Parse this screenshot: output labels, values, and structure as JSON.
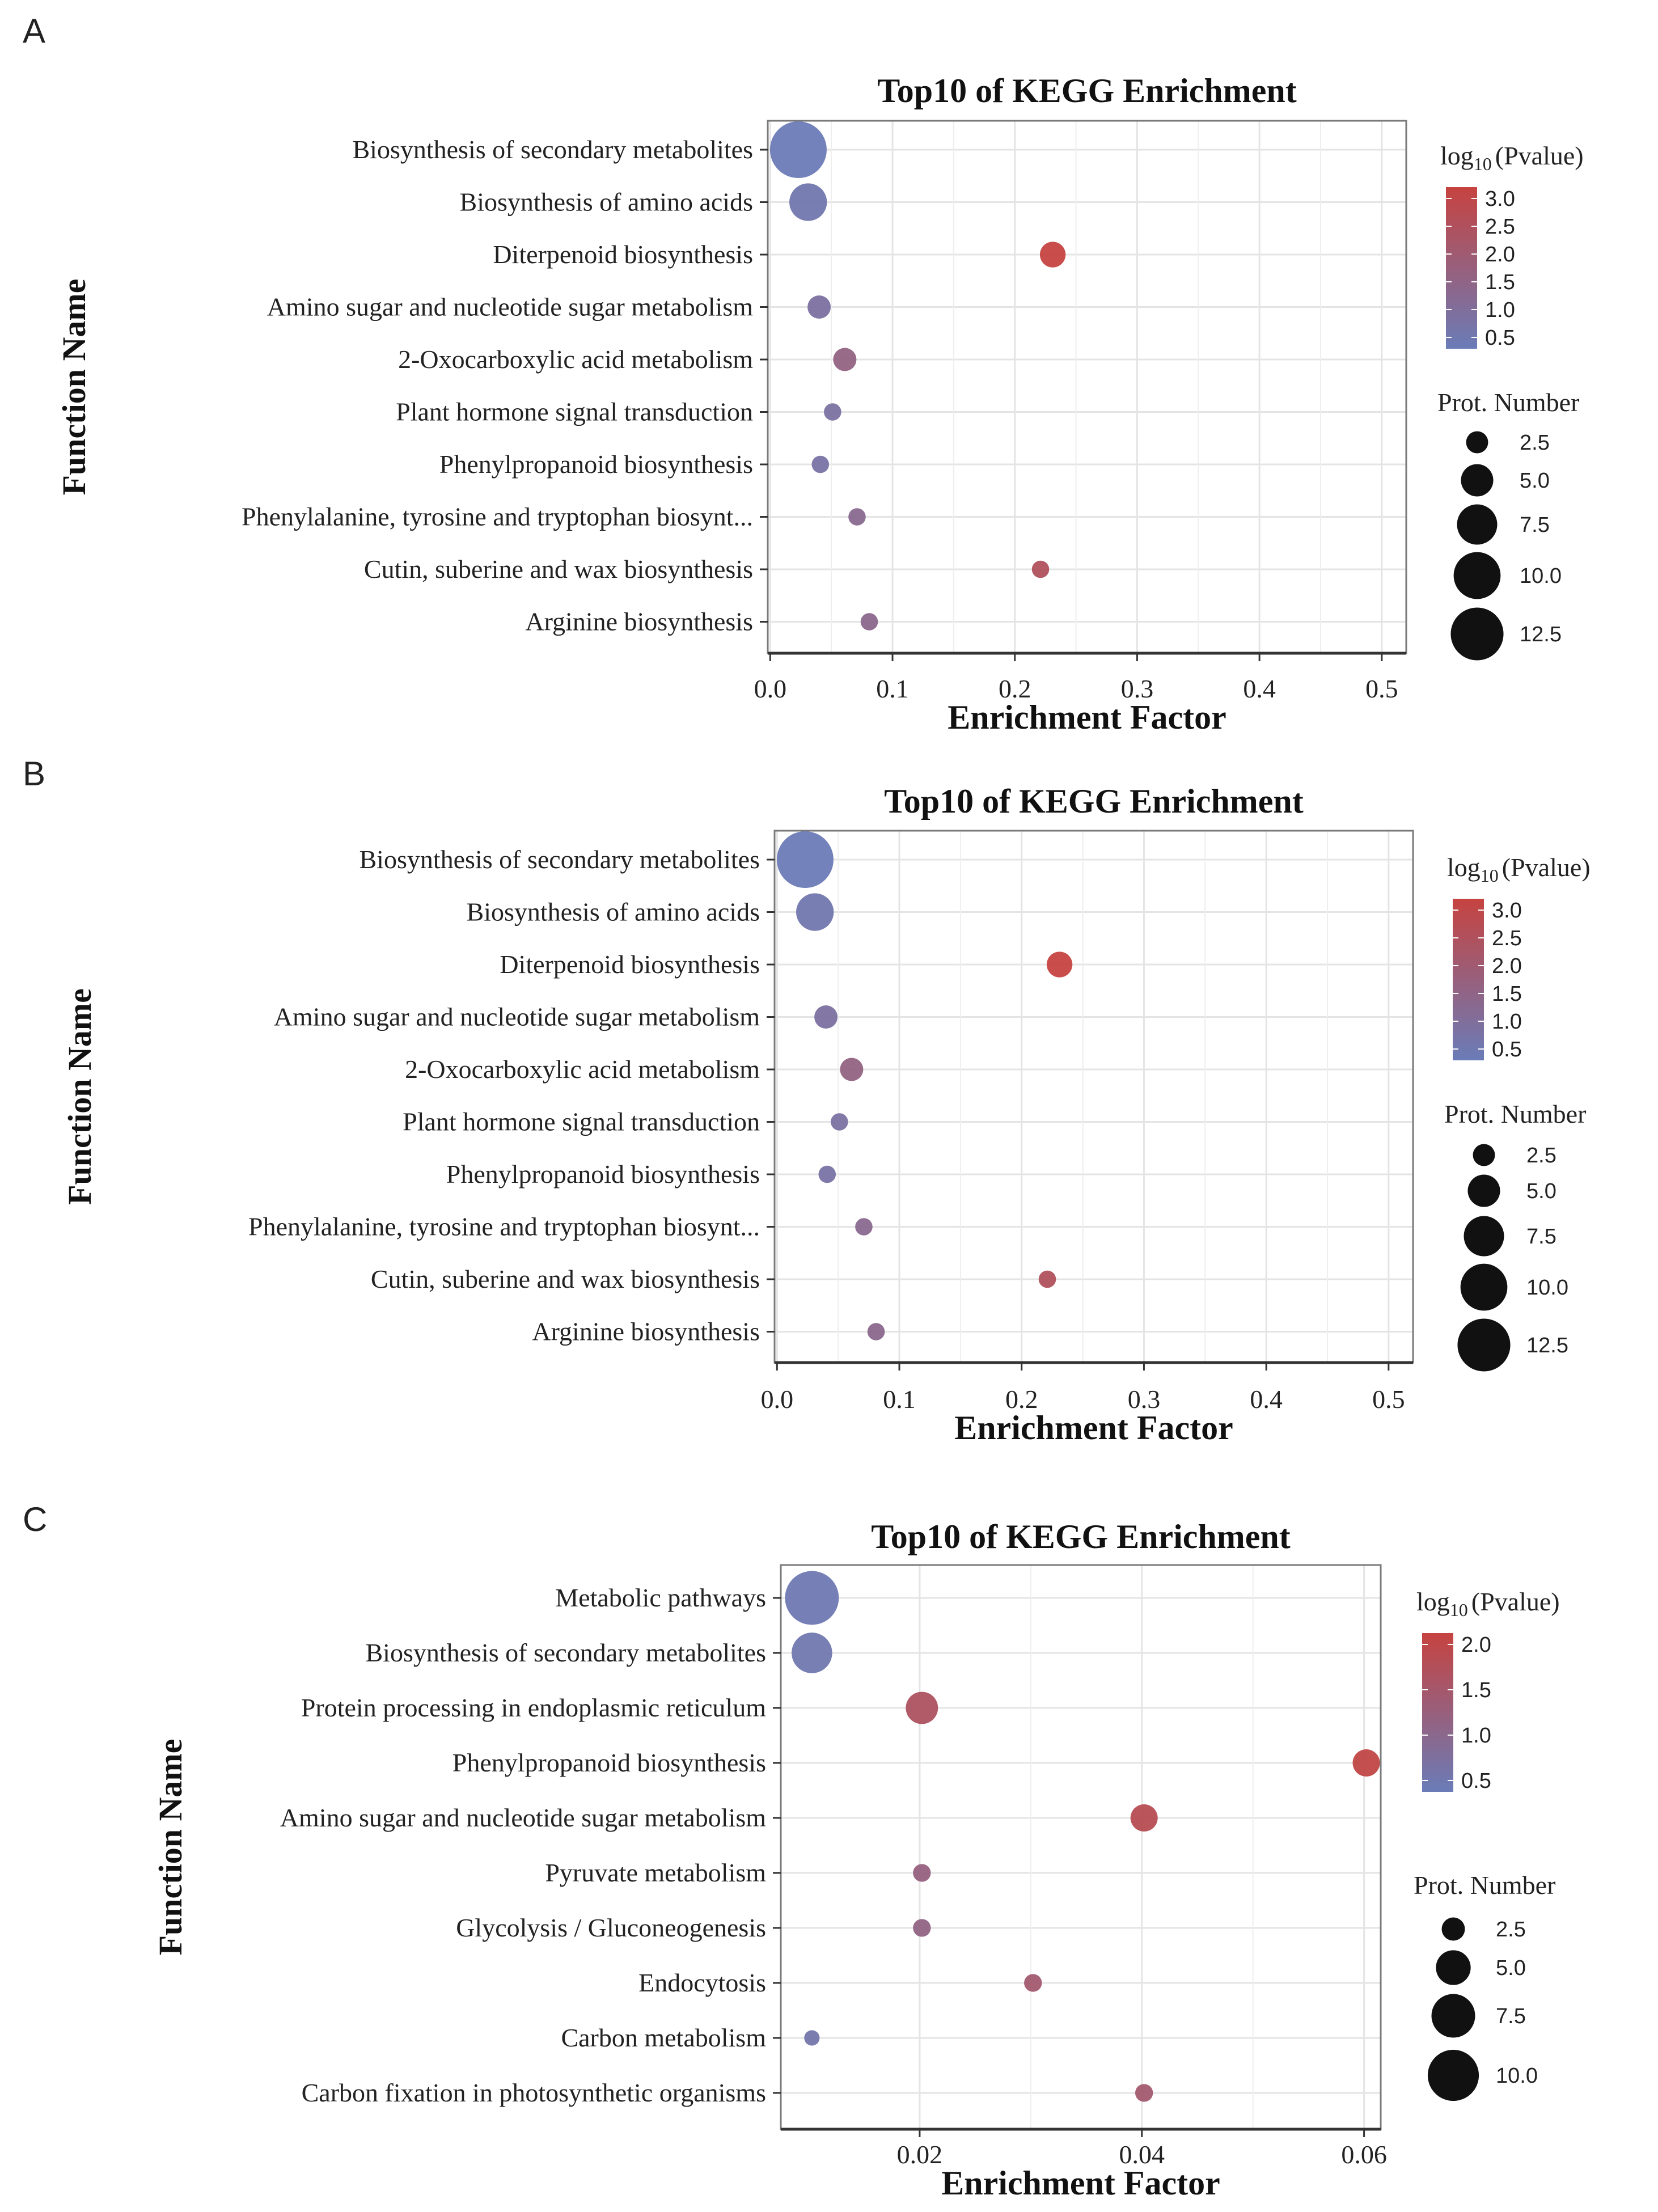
{
  "colors": {
    "low": "#6a7cb8",
    "high": "#c64340",
    "grid": "#e4e4e4",
    "frame": "#7a7a7a",
    "axis": "#333333"
  },
  "legend": {
    "color_title_prefix": "log",
    "color_title_sub": "10",
    "color_title_suffix": "(Pvalue)",
    "size_title": "Prot. Number"
  },
  "chart_data": [
    {
      "panel": "A",
      "type": "scatter",
      "title": "Top10 of KEGG Enrichment",
      "xlabel": "Enrichment Factor",
      "ylabel": "Function Name",
      "xlim": [
        -0.002,
        0.52
      ],
      "xticks": [
        {
          "value": 0.0,
          "label": "0.0"
        },
        {
          "value": 0.1,
          "label": "0.1"
        },
        {
          "value": 0.2,
          "label": "0.2"
        },
        {
          "value": 0.3,
          "label": "0.3"
        },
        {
          "value": 0.4,
          "label": "0.4"
        },
        {
          "value": 0.5,
          "label": "0.5"
        }
      ],
      "grid": true,
      "color_range": [
        0.5,
        3.0
      ],
      "color_ticks": [
        "3.0",
        "2.5",
        "2.0",
        "1.5",
        "1.0",
        "0.5"
      ],
      "size_range": [
        1,
        14
      ],
      "size_ticks": [
        {
          "value": 2.5,
          "label": "2.5"
        },
        {
          "value": 5.0,
          "label": "5.0"
        },
        {
          "value": 7.5,
          "label": "7.5"
        },
        {
          "value": 10.0,
          "label": "10.0"
        },
        {
          "value": 12.5,
          "label": "12.5"
        }
      ],
      "points": [
        {
          "name": "Biosynthesis of secondary metabolites",
          "x": 0.023,
          "size": 13,
          "log10p": 0.55
        },
        {
          "name": "Biosynthesis of amino acids",
          "x": 0.031,
          "size": 6,
          "log10p": 0.7
        },
        {
          "name": "Diterpenoid biosynthesis",
          "x": 0.231,
          "size": 3,
          "log10p": 3.0
        },
        {
          "name": "Amino sugar and nucleotide sugar metabolism",
          "x": 0.04,
          "size": 2.5,
          "log10p": 1.0
        },
        {
          "name": "2-Oxocarboxylic acid metabolism",
          "x": 0.061,
          "size": 2.5,
          "log10p": 1.6
        },
        {
          "name": "Plant hormone signal transduction",
          "x": 0.051,
          "size": 1.5,
          "log10p": 0.95
        },
        {
          "name": "Phenylpropanoid biosynthesis",
          "x": 0.041,
          "size": 1.5,
          "log10p": 0.9
        },
        {
          "name": "Phenylalanine, tyrosine and tryptophan biosynt...",
          "x": 0.071,
          "size": 1.5,
          "log10p": 1.35
        },
        {
          "name": "Cutin, suberine and wax biosynthesis",
          "x": 0.221,
          "size": 1.5,
          "log10p": 2.4
        },
        {
          "name": "Arginine biosynthesis",
          "x": 0.081,
          "size": 1.5,
          "log10p": 1.4
        }
      ]
    },
    {
      "panel": "B",
      "type": "scatter",
      "title": "Top10 of KEGG Enrichment",
      "xlabel": "Enrichment Factor",
      "ylabel": "Function Name",
      "xlim": [
        -0.002,
        0.52
      ],
      "xticks": [
        {
          "value": 0.0,
          "label": "0.0"
        },
        {
          "value": 0.1,
          "label": "0.1"
        },
        {
          "value": 0.2,
          "label": "0.2"
        },
        {
          "value": 0.3,
          "label": "0.3"
        },
        {
          "value": 0.4,
          "label": "0.4"
        },
        {
          "value": 0.5,
          "label": "0.5"
        }
      ],
      "grid": true,
      "color_range": [
        0.5,
        3.0
      ],
      "color_ticks": [
        "3.0",
        "2.5",
        "2.0",
        "1.5",
        "1.0",
        "0.5"
      ],
      "size_range": [
        1,
        14
      ],
      "size_ticks": [
        {
          "value": 2.5,
          "label": "2.5"
        },
        {
          "value": 5.0,
          "label": "5.0"
        },
        {
          "value": 7.5,
          "label": "7.5"
        },
        {
          "value": 10.0,
          "label": "10.0"
        },
        {
          "value": 12.5,
          "label": "12.5"
        }
      ],
      "points": [
        {
          "name": "Biosynthesis of secondary metabolites",
          "x": 0.023,
          "size": 13,
          "log10p": 0.55
        },
        {
          "name": "Biosynthesis of amino acids",
          "x": 0.031,
          "size": 6,
          "log10p": 0.7
        },
        {
          "name": "Diterpenoid biosynthesis",
          "x": 0.231,
          "size": 3,
          "log10p": 3.0
        },
        {
          "name": "Amino sugar and nucleotide sugar metabolism",
          "x": 0.04,
          "size": 2.5,
          "log10p": 1.0
        },
        {
          "name": "2-Oxocarboxylic acid metabolism",
          "x": 0.061,
          "size": 2.5,
          "log10p": 1.6
        },
        {
          "name": "Plant hormone signal transduction",
          "x": 0.051,
          "size": 1.5,
          "log10p": 0.95
        },
        {
          "name": "Phenylpropanoid biosynthesis",
          "x": 0.041,
          "size": 1.5,
          "log10p": 0.9
        },
        {
          "name": "Phenylalanine, tyrosine and tryptophan biosynt...",
          "x": 0.071,
          "size": 1.5,
          "log10p": 1.35
        },
        {
          "name": "Cutin, suberine and wax biosynthesis",
          "x": 0.221,
          "size": 1.5,
          "log10p": 2.4
        },
        {
          "name": "Arginine biosynthesis",
          "x": 0.081,
          "size": 1.5,
          "log10p": 1.4
        }
      ]
    },
    {
      "panel": "C",
      "type": "scatter",
      "title": "Top10 of KEGG Enrichment",
      "xlabel": "Enrichment Factor",
      "ylabel": "Function Name",
      "xlim": [
        0.0075,
        0.0615
      ],
      "xticks": [
        {
          "value": 0.02,
          "label": "0.02"
        },
        {
          "value": 0.04,
          "label": "0.04"
        },
        {
          "value": 0.06,
          "label": "0.06"
        }
      ],
      "grid": true,
      "color_range": [
        0.3,
        2.2
      ],
      "color_ticks": [
        "2.0",
        "1.5",
        "1.0",
        "0.5"
      ],
      "size_range": [
        1,
        11
      ],
      "size_ticks": [
        {
          "value": 2.5,
          "label": "2.5"
        },
        {
          "value": 5.0,
          "label": "5.0"
        },
        {
          "value": 7.5,
          "label": "7.5"
        },
        {
          "value": 10.0,
          "label": "10.0"
        }
      ],
      "points": [
        {
          "name": "Metabolic pathways",
          "x": 0.0103,
          "size": 10,
          "log10p": 0.4
        },
        {
          "name": "Biosynthesis of secondary metabolites",
          "x": 0.0103,
          "size": 6,
          "log10p": 0.45
        },
        {
          "name": "Protein processing in endoplasmic reticulum",
          "x": 0.0202,
          "size": 4,
          "log10p": 1.7
        },
        {
          "name": "Phenylpropanoid biosynthesis",
          "x": 0.0602,
          "size": 3,
          "log10p": 2.1
        },
        {
          "name": "Amino sugar and nucleotide sugar metabolism",
          "x": 0.0402,
          "size": 3,
          "log10p": 1.9
        },
        {
          "name": "Pyruvate metabolism",
          "x": 0.0202,
          "size": 1.5,
          "log10p": 1.2
        },
        {
          "name": "Glycolysis / Gluconeogenesis",
          "x": 0.0202,
          "size": 1.5,
          "log10p": 1.1
        },
        {
          "name": "Endocytosis",
          "x": 0.0302,
          "size": 1.5,
          "log10p": 1.45
        },
        {
          "name": "Carbon metabolism",
          "x": 0.0103,
          "size": 1.2,
          "log10p": 0.5
        },
        {
          "name": "Carbon fixation in photosynthetic organisms",
          "x": 0.0402,
          "size": 1.5,
          "log10p": 1.45
        }
      ]
    }
  ]
}
